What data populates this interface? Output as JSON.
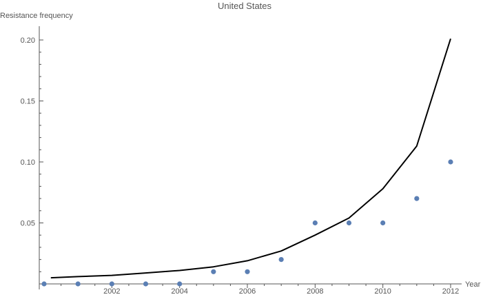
{
  "chart_data": {
    "type": "scatter",
    "title": "United States",
    "xlabel": "Year",
    "ylabel": "Resistance frequency",
    "xlim": [
      2000,
      2012.3
    ],
    "ylim": [
      0,
      0.21
    ],
    "x_ticks": [
      2002,
      2004,
      2006,
      2008,
      2010,
      2012
    ],
    "y_ticks": [
      0.05,
      0.1,
      0.15,
      0.2
    ],
    "x_tick_labels": [
      "2002",
      "2004",
      "2006",
      "2008",
      "2010",
      "2012"
    ],
    "y_tick_labels": [
      "0.05",
      "0.10",
      "0.15",
      "0.20"
    ],
    "grid": false,
    "series": [
      {
        "kind": "scatter",
        "color": "#5b7fb4",
        "x": [
          2000,
          2001,
          2002,
          2003,
          2004,
          2005,
          2006,
          2007,
          2008,
          2009,
          2010,
          2011,
          2012
        ],
        "y": [
          0.0,
          0.0,
          0.0,
          0.0,
          0.0,
          0.01,
          0.01,
          0.02,
          0.05,
          0.05,
          0.05,
          0.07,
          0.1
        ]
      },
      {
        "kind": "line",
        "color": "#000000",
        "x": [
          2000.2,
          2001,
          2002,
          2003,
          2004,
          2005,
          2006,
          2007,
          2008,
          2009,
          2010,
          2011,
          2012
        ],
        "y": [
          0.005,
          0.006,
          0.007,
          0.009,
          0.011,
          0.014,
          0.019,
          0.027,
          0.04,
          0.054,
          0.078,
          0.113,
          0.201
        ]
      }
    ]
  }
}
